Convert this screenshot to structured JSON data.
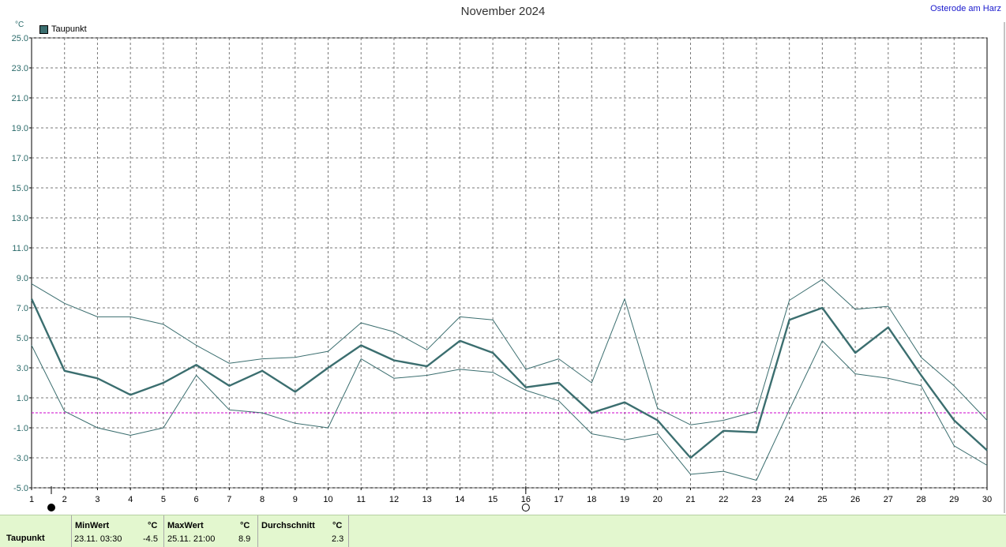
{
  "title": "November 2024",
  "station": "Osterode am Harz",
  "legend": {
    "label": "Taupunkt",
    "color": "#3b6e6f"
  },
  "chart_data": {
    "type": "line",
    "title": "November 2024",
    "ylabel": "°C",
    "xlabel": "",
    "ylim": [
      -5.0,
      25.0
    ],
    "xlim": [
      1,
      30
    ],
    "grid": true,
    "legend_position": "top-left",
    "yticks": [
      "25.0",
      "23.0",
      "21.0",
      "19.0",
      "17.0",
      "15.0",
      "13.0",
      "11.0",
      "9.0",
      "7.0",
      "5.0",
      "3.0",
      "1.0",
      "-1.0",
      "-3.0",
      "-5.0"
    ],
    "x": [
      1,
      2,
      3,
      4,
      5,
      6,
      7,
      8,
      9,
      10,
      11,
      12,
      13,
      14,
      15,
      16,
      17,
      18,
      19,
      20,
      21,
      22,
      23,
      24,
      25,
      26,
      27,
      28,
      29,
      30
    ],
    "series": [
      {
        "name": "Taupunkt",
        "role": "mean",
        "values": [
          7.6,
          2.8,
          2.3,
          1.2,
          2.0,
          3.2,
          1.8,
          2.8,
          1.4,
          3.0,
          4.5,
          3.5,
          3.1,
          4.8,
          4.0,
          1.7,
          2.0,
          0.0,
          0.7,
          -0.5,
          -3.0,
          -1.2,
          -1.3,
          6.2,
          7.0,
          4.0,
          5.7,
          2.5,
          -0.5,
          -2.5
        ]
      },
      {
        "role": "max",
        "values": [
          8.6,
          7.3,
          6.4,
          6.4,
          5.9,
          4.5,
          3.3,
          3.6,
          3.7,
          4.1,
          6.0,
          5.4,
          4.2,
          6.4,
          6.2,
          2.9,
          3.6,
          2.0,
          7.6,
          0.3,
          -0.8,
          -0.5,
          0.1,
          7.5,
          8.9,
          6.9,
          7.1,
          3.7,
          1.8,
          -0.5
        ]
      },
      {
        "role": "min",
        "values": [
          4.5,
          0.1,
          -1.0,
          -1.5,
          -1.0,
          2.5,
          0.2,
          0.0,
          -0.7,
          -1.0,
          3.6,
          2.3,
          2.5,
          2.9,
          2.7,
          1.5,
          0.8,
          -1.4,
          -1.8,
          -1.4,
          -4.1,
          -3.9,
          -4.5,
          0.2,
          4.8,
          2.6,
          2.3,
          1.8,
          -2.2,
          -3.5
        ]
      }
    ],
    "reference_line": {
      "value": 0.0,
      "color": "#cc00cc"
    }
  },
  "markers": {
    "full_moon_day": 1,
    "new_moon_day": 16
  },
  "stats": {
    "name": "Taupunkt",
    "min_header": "MinWert",
    "min_unit": "°C",
    "min_date": "23.11.  03:30",
    "min_value": "-4.5",
    "max_header": "MaxWert",
    "max_unit": "°C",
    "max_date": "25.11.  21:00",
    "max_value": "8.9",
    "avg_header": "Durchschnitt",
    "avg_unit": "°C",
    "avg_value": "2.3"
  }
}
